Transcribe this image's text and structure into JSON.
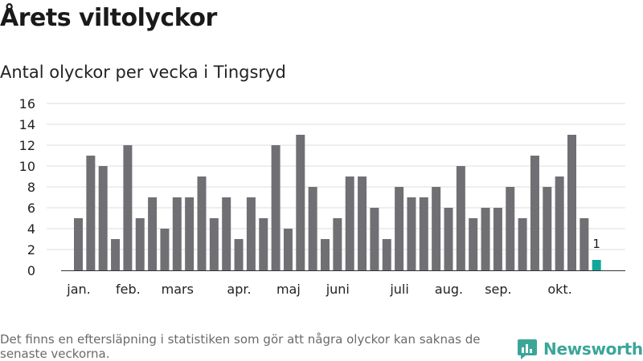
{
  "title": "Årets viltolyckor",
  "subtitle": "Antal olyckor per vecka i Tingsryd",
  "footnote": "Det finns en eftersläpning i statistiken som gör att några olyckor kan saknas de senaste veckorna.",
  "brand": {
    "name": "Newsworthy",
    "icon": "bar-chart-logo-icon",
    "color": "#3aa698"
  },
  "chart_data": {
    "type": "bar",
    "title": "Antal olyckor per vecka i Tingsryd",
    "xlabel": "",
    "ylabel": "",
    "ylim": [
      0,
      16
    ],
    "yticks": [
      0,
      2,
      4,
      6,
      8,
      10,
      12,
      14,
      16
    ],
    "grid": true,
    "bar_color": "#707074",
    "highlight_color": "#14a69c",
    "x_month_labels": [
      "jan.",
      "feb.",
      "mars",
      "apr.",
      "maj",
      "juni",
      "juli",
      "aug.",
      "sep.",
      "okt."
    ],
    "values": [
      5,
      11,
      10,
      3,
      12,
      5,
      7,
      4,
      7,
      7,
      9,
      5,
      7,
      3,
      7,
      5,
      12,
      4,
      13,
      8,
      3,
      5,
      9,
      9,
      6,
      3,
      8,
      7,
      7,
      8,
      6,
      10,
      5,
      6,
      6,
      8,
      5,
      11,
      8,
      9,
      13,
      5,
      1
    ],
    "highlight_last": true,
    "last_value_label": "1"
  }
}
